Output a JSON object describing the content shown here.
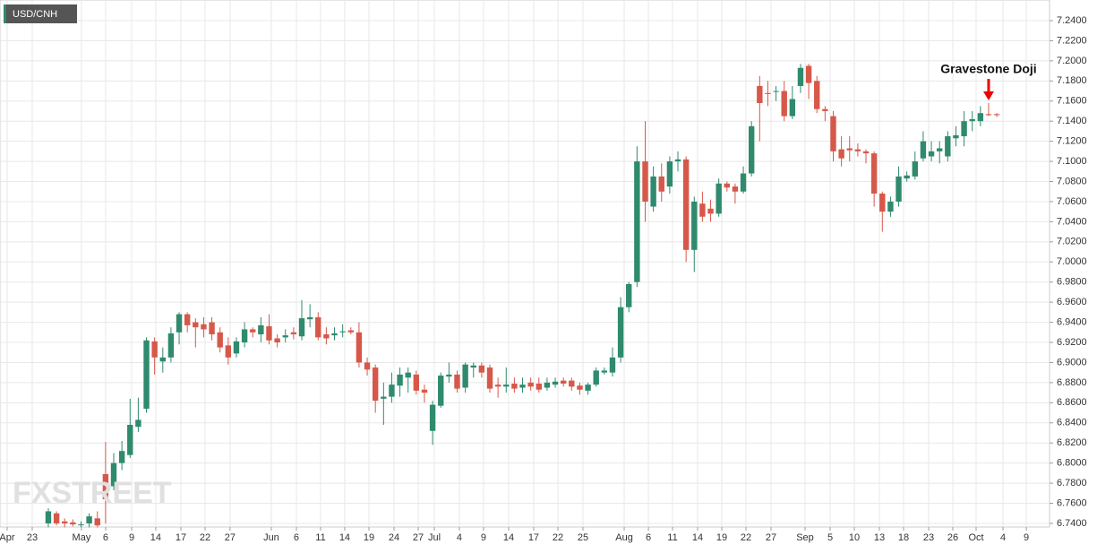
{
  "chart_data": {
    "type": "candlestick",
    "title": "USD/CNH",
    "annotation": "Gravestone Doji",
    "watermark": "FXSTREET",
    "up_color": "#2f8a6e",
    "down_color": "#d6584a",
    "grid": true,
    "ylim": [
      6.7364,
      7.2605
    ],
    "yticks": [
      {
        "value": 6.74,
        "label": "6.7400"
      },
      {
        "value": 6.76,
        "label": "6.7600"
      },
      {
        "value": 6.78,
        "label": "6.7800"
      },
      {
        "value": 6.8,
        "label": "6.8000"
      },
      {
        "value": 6.82,
        "label": "6.8200"
      },
      {
        "value": 6.84,
        "label": "6.8400"
      },
      {
        "value": 6.86,
        "label": "6.8600"
      },
      {
        "value": 6.88,
        "label": "6.8800"
      },
      {
        "value": 6.9,
        "label": "6.9000"
      },
      {
        "value": 6.92,
        "label": "6.9200"
      },
      {
        "value": 6.94,
        "label": "6.9400"
      },
      {
        "value": 6.96,
        "label": "6.9600"
      },
      {
        "value": 6.98,
        "label": "6.9800"
      },
      {
        "value": 7.0,
        "label": "7.0000"
      },
      {
        "value": 7.02,
        "label": "7.0200"
      },
      {
        "value": 7.04,
        "label": "7.0400"
      },
      {
        "value": 7.06,
        "label": "7.0600"
      },
      {
        "value": 7.08,
        "label": "7.0800"
      },
      {
        "value": 7.1,
        "label": "7.1000"
      },
      {
        "value": 7.12,
        "label": "7.1200"
      },
      {
        "value": 7.14,
        "label": "7.1400"
      },
      {
        "value": 7.16,
        "label": "7.1600"
      },
      {
        "value": 7.18,
        "label": "7.1800"
      },
      {
        "value": 7.2,
        "label": "7.2000"
      },
      {
        "value": 7.22,
        "label": "7.2200"
      },
      {
        "value": 7.24,
        "label": "7.2400"
      }
    ],
    "xlim": [
      -5.91,
      122.45
    ],
    "xticks": [
      {
        "value": -5.04,
        "label": "Apr"
      },
      {
        "value": -1.97,
        "label": "23"
      },
      {
        "value": 4.05,
        "label": "May"
      },
      {
        "value": 7.01,
        "label": "6"
      },
      {
        "value": 10.19,
        "label": "9"
      },
      {
        "value": 13.14,
        "label": "14"
      },
      {
        "value": 16.21,
        "label": "17"
      },
      {
        "value": 19.17,
        "label": "22"
      },
      {
        "value": 22.23,
        "label": "27"
      },
      {
        "value": 27.27,
        "label": "Jun"
      },
      {
        "value": 30.34,
        "label": "6"
      },
      {
        "value": 33.3,
        "label": "11"
      },
      {
        "value": 36.25,
        "label": "14"
      },
      {
        "value": 39.21,
        "label": "19"
      },
      {
        "value": 42.28,
        "label": "24"
      },
      {
        "value": 45.24,
        "label": "27"
      },
      {
        "value": 47.21,
        "label": "Jul"
      },
      {
        "value": 50.27,
        "label": "4"
      },
      {
        "value": 53.23,
        "label": "9"
      },
      {
        "value": 56.3,
        "label": "14"
      },
      {
        "value": 59.36,
        "label": "17"
      },
      {
        "value": 62.32,
        "label": "22"
      },
      {
        "value": 65.39,
        "label": "25"
      },
      {
        "value": 70.43,
        "label": "Aug"
      },
      {
        "value": 73.39,
        "label": "6"
      },
      {
        "value": 76.34,
        "label": "11"
      },
      {
        "value": 79.41,
        "label": "14"
      },
      {
        "value": 82.37,
        "label": "19"
      },
      {
        "value": 85.32,
        "label": "22"
      },
      {
        "value": 88.39,
        "label": "27"
      },
      {
        "value": 92.55,
        "label": "Sep"
      },
      {
        "value": 95.62,
        "label": "5"
      },
      {
        "value": 98.58,
        "label": "10"
      },
      {
        "value": 101.64,
        "label": "13"
      },
      {
        "value": 104.6,
        "label": "18"
      },
      {
        "value": 107.67,
        "label": "23"
      },
      {
        "value": 110.62,
        "label": "26"
      },
      {
        "value": 113.47,
        "label": "Oct"
      },
      {
        "value": 116.76,
        "label": "4"
      },
      {
        "value": 119.61,
        "label": "9"
      }
    ],
    "open": [
      6.74,
      6.75,
      6.742,
      6.741,
      6.739,
      6.74,
      6.745,
      6.789,
      6.777,
      6.8,
      6.808,
      6.836,
      6.854,
      6.921,
      6.901,
      6.905,
      6.93,
      6.948,
      6.94,
      6.938,
      6.94,
      6.93,
      6.917,
      6.909,
      6.92,
      6.933,
      6.928,
      6.936,
      6.924,
      6.925,
      6.93,
      6.926,
      6.943,
      6.945,
      6.928,
      6.927,
      6.93,
      6.932,
      6.93,
      6.9,
      6.895,
      6.864,
      6.866,
      6.877,
      6.885,
      6.888,
      6.873,
      6.832,
      6.857,
      6.886,
      6.888,
      6.875,
      6.895,
      6.897,
      6.895,
      6.878,
      6.876,
      6.879,
      6.875,
      6.88,
      6.879,
      6.875,
      6.878,
      6.882,
      6.882,
      6.877,
      6.872,
      6.878,
      6.89,
      6.89,
      6.905,
      6.955,
      6.98,
      7.1,
      7.055,
      7.085,
      7.075,
      7.1,
      7.102,
      7.012,
      7.058,
      7.053,
      7.048,
      7.078,
      7.075,
      7.07,
      7.088,
      7.175,
      7.168,
      7.17,
      7.17,
      7.145,
      7.175,
      7.195,
      7.18,
      7.152,
      7.145,
      7.112,
      7.113,
      7.112,
      7.11,
      7.108,
      7.068,
      7.05,
      7.06,
      7.083,
      7.085,
      7.103,
      7.105,
      7.11,
      7.105,
      7.123,
      7.125,
      7.14,
      7.14,
      7.147,
      7.147
    ],
    "high": [
      6.755,
      6.752,
      6.745,
      6.744,
      6.742,
      6.75,
      6.752,
      6.821,
      6.81,
      6.822,
      6.864,
      6.865,
      6.925,
      6.925,
      6.915,
      6.935,
      6.95,
      6.95,
      6.944,
      6.945,
      6.945,
      6.935,
      6.925,
      6.925,
      6.94,
      6.935,
      6.945,
      6.948,
      6.928,
      6.933,
      6.935,
      6.962,
      6.958,
      6.95,
      6.935,
      6.935,
      6.938,
      6.935,
      6.94,
      6.905,
      6.898,
      6.88,
      6.89,
      6.895,
      6.895,
      6.892,
      6.878,
      6.862,
      6.89,
      6.9,
      6.892,
      6.9,
      6.9,
      6.9,
      6.898,
      6.885,
      6.895,
      6.885,
      6.885,
      6.885,
      6.885,
      6.885,
      6.885,
      6.885,
      6.885,
      6.88,
      6.88,
      6.895,
      6.895,
      6.915,
      6.965,
      6.98,
      7.115,
      7.14,
      7.095,
      7.098,
      7.105,
      7.11,
      7.105,
      7.065,
      7.07,
      7.062,
      7.083,
      7.08,
      7.078,
      7.095,
      7.14,
      7.185,
      7.18,
      7.175,
      7.18,
      7.175,
      7.197,
      7.197,
      7.185,
      7.155,
      7.15,
      7.125,
      7.125,
      7.118,
      7.112,
      7.11,
      7.07,
      7.065,
      7.095,
      7.09,
      7.11,
      7.13,
      7.12,
      7.12,
      7.13,
      7.135,
      7.15,
      7.15,
      7.155,
      7.158,
      7.148
    ],
    "low": [
      6.736,
      6.738,
      6.736,
      6.737,
      6.736,
      6.736,
      6.736,
      6.74,
      6.773,
      6.793,
      6.805,
      6.831,
      6.85,
      6.888,
      6.89,
      6.9,
      6.918,
      6.93,
      6.915,
      6.925,
      6.922,
      6.91,
      6.898,
      6.905,
      6.915,
      6.925,
      6.92,
      6.918,
      6.915,
      6.92,
      6.923,
      6.922,
      6.935,
      6.922,
      6.918,
      6.922,
      6.925,
      6.928,
      6.895,
      6.887,
      6.85,
      6.838,
      6.86,
      6.866,
      6.87,
      6.868,
      6.86,
      6.818,
      6.855,
      6.88,
      6.87,
      6.87,
      6.885,
      6.885,
      6.87,
      6.865,
      6.87,
      6.87,
      6.87,
      6.872,
      6.87,
      6.872,
      6.875,
      6.876,
      6.872,
      6.868,
      6.868,
      6.876,
      6.888,
      6.886,
      6.9,
      6.95,
      6.975,
      7.04,
      7.05,
      7.06,
      7.068,
      7.09,
      7.0,
      6.99,
      7.04,
      7.04,
      7.045,
      7.07,
      7.058,
      7.068,
      7.085,
      7.12,
      7.155,
      7.16,
      7.14,
      7.142,
      7.168,
      7.162,
      7.148,
      7.14,
      7.1,
      7.095,
      7.1,
      7.105,
      7.098,
      7.055,
      7.03,
      7.045,
      7.055,
      7.08,
      7.082,
      7.1,
      7.1,
      7.098,
      7.1,
      7.115,
      7.115,
      7.13,
      7.135,
      7.145,
      7.144
    ],
    "close": [
      6.752,
      6.74,
      6.74,
      6.739,
      6.739,
      6.747,
      6.738,
      6.764,
      6.8,
      6.812,
      6.838,
      6.843,
      6.922,
      6.905,
      6.905,
      6.929,
      6.948,
      6.937,
      6.935,
      6.933,
      6.928,
      6.915,
      6.905,
      6.921,
      6.933,
      6.93,
      6.937,
      6.922,
      6.92,
      6.927,
      6.928,
      6.944,
      6.945,
      6.925,
      6.924,
      6.929,
      6.931,
      6.93,
      6.9,
      6.893,
      6.862,
      6.866,
      6.878,
      6.888,
      6.89,
      6.872,
      6.87,
      6.858,
      6.887,
      6.888,
      6.874,
      6.898,
      6.897,
      6.89,
      6.874,
      6.876,
      6.878,
      6.874,
      6.878,
      6.876,
      6.873,
      6.88,
      6.881,
      6.879,
      6.876,
      6.873,
      6.878,
      6.892,
      6.892,
      6.905,
      6.955,
      6.978,
      7.1,
      7.06,
      7.085,
      7.07,
      7.1,
      7.102,
      7.012,
      7.06,
      7.045,
      7.048,
      7.078,
      7.074,
      7.07,
      7.088,
      7.135,
      7.158,
      7.167,
      7.17,
      7.145,
      7.162,
      7.193,
      7.178,
      7.152,
      7.15,
      7.11,
      7.103,
      7.111,
      7.11,
      7.108,
      7.068,
      7.05,
      7.06,
      7.085,
      7.086,
      7.1,
      7.12,
      7.11,
      7.113,
      7.125,
      7.126,
      7.14,
      7.142,
      7.148,
      7.146,
      7.146
    ]
  }
}
